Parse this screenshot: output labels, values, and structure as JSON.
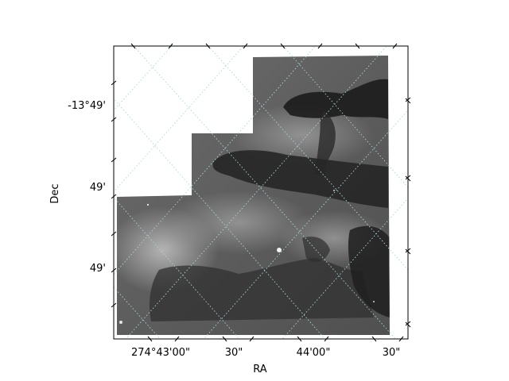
{
  "chart_data": {
    "type": "image",
    "xlabel": "RA",
    "ylabel": "Dec",
    "x_ticks": [
      "274°43'00\"",
      "30\"",
      "44'00\"",
      "30\""
    ],
    "y_ticks": [
      "-13°49'",
      "49'",
      "49'"
    ],
    "grid": true,
    "grid_style": "dotted",
    "grid_color": "#a9d6d6",
    "colormap": "gray",
    "image_description": "Grayscale astronomical mosaic with rotated RA/Dec coordinate grid"
  }
}
